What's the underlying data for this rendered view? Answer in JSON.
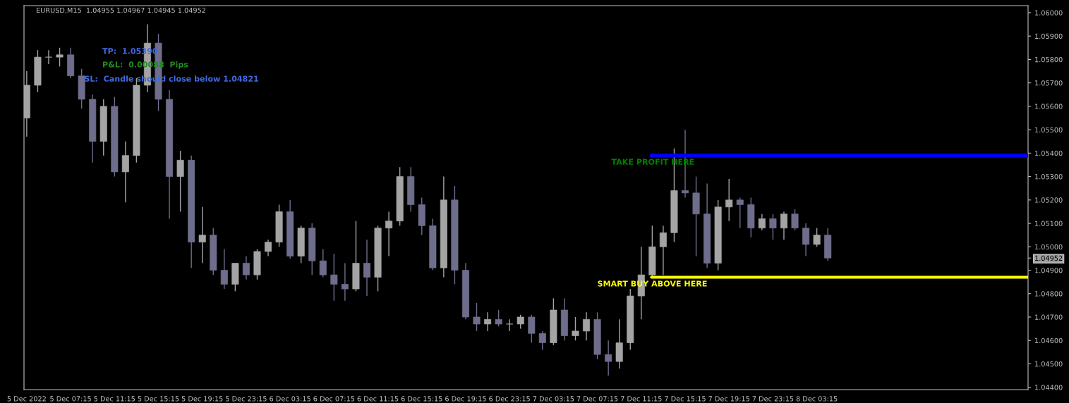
{
  "chart_data": {
    "type": "candlestick",
    "title": "EURUSD,M15  1.04955 1.04967 1.04945 1.04952",
    "x": [
      "2022-12-05T03:15",
      "2022-12-05T04:15",
      "2022-12-05T05:15",
      "2022-12-05T06:15",
      "2022-12-05T07:15",
      "2022-12-05T08:15",
      "2022-12-05T09:15",
      "2022-12-05T10:15",
      "2022-12-05T11:15",
      "2022-12-05T12:15",
      "2022-12-05T13:15",
      "2022-12-05T14:15",
      "2022-12-05T15:15",
      "2022-12-05T16:15",
      "2022-12-05T17:15",
      "2022-12-05T18:15",
      "2022-12-05T19:15",
      "2022-12-05T20:15",
      "2022-12-05T21:15",
      "2022-12-05T22:15",
      "2022-12-05T23:15",
      "2022-12-06T00:15",
      "2022-12-06T01:15",
      "2022-12-06T02:15",
      "2022-12-06T03:15",
      "2022-12-06T04:15",
      "2022-12-06T05:15",
      "2022-12-06T06:15",
      "2022-12-06T07:15",
      "2022-12-06T08:15",
      "2022-12-06T09:15",
      "2022-12-06T10:15",
      "2022-12-06T11:15",
      "2022-12-06T12:15",
      "2022-12-06T13:15",
      "2022-12-06T14:15",
      "2022-12-06T15:15",
      "2022-12-06T16:15",
      "2022-12-06T17:15",
      "2022-12-06T18:15",
      "2022-12-06T19:15",
      "2022-12-06T20:15",
      "2022-12-06T21:15",
      "2022-12-06T22:15",
      "2022-12-06T23:15",
      "2022-12-07T00:15",
      "2022-12-07T01:15",
      "2022-12-07T02:15",
      "2022-12-07T03:15",
      "2022-12-07T04:15",
      "2022-12-07T05:15",
      "2022-12-07T06:15",
      "2022-12-07T07:15",
      "2022-12-07T08:15",
      "2022-12-07T09:15",
      "2022-12-07T10:15",
      "2022-12-07T11:15",
      "2022-12-07T12:15",
      "2022-12-07T13:15",
      "2022-12-07T14:15",
      "2022-12-07T15:15",
      "2022-12-07T16:15",
      "2022-12-07T17:15",
      "2022-12-07T18:15",
      "2022-12-07T19:15",
      "2022-12-07T20:15",
      "2022-12-07T21:15",
      "2022-12-07T22:15",
      "2022-12-07T23:15",
      "2022-12-08T00:15",
      "2022-12-08T01:15",
      "2022-12-08T02:15",
      "2022-12-08T03:15",
      "2022-12-08T04:15"
    ],
    "ohlc": [
      [
        1.0555,
        1.0575,
        1.0547,
        1.0569
      ],
      [
        1.0569,
        1.0584,
        1.0566,
        1.0581
      ],
      [
        1.0581,
        1.0584,
        1.0578,
        1.0581
      ],
      [
        1.0581,
        1.0585,
        1.0577,
        1.0582
      ],
      [
        1.0582,
        1.0585,
        1.0572,
        1.0573
      ],
      [
        1.0573,
        1.0576,
        1.0559,
        1.0563
      ],
      [
        1.0563,
        1.0565,
        1.0536,
        1.0545
      ],
      [
        1.0545,
        1.0563,
        1.0539,
        1.056
      ],
      [
        1.056,
        1.0564,
        1.053,
        1.0532
      ],
      [
        1.0532,
        1.0545,
        1.0519,
        1.0539
      ],
      [
        1.0539,
        1.0572,
        1.0536,
        1.0569
      ],
      [
        1.0569,
        1.0595,
        1.0566,
        1.0587
      ],
      [
        1.0587,
        1.0591,
        1.0558,
        1.0563
      ],
      [
        1.0563,
        1.0567,
        1.0512,
        1.053
      ],
      [
        1.053,
        1.0541,
        1.0515,
        1.0537
      ],
      [
        1.0537,
        1.0539,
        1.0491,
        1.0502
      ],
      [
        1.0502,
        1.0517,
        1.0493,
        1.0505
      ],
      [
        1.0505,
        1.0508,
        1.0488,
        1.049
      ],
      [
        1.049,
        1.0499,
        1.0482,
        1.0484
      ],
      [
        1.0484,
        1.0493,
        1.0481,
        1.0493
      ],
      [
        1.0493,
        1.0496,
        1.0486,
        1.0488
      ],
      [
        1.0488,
        1.0499,
        1.0486,
        1.0498
      ],
      [
        1.0498,
        1.0503,
        1.0496,
        1.0502
      ],
      [
        1.0502,
        1.0518,
        1.05,
        1.0515
      ],
      [
        1.0515,
        1.052,
        1.0495,
        1.0496
      ],
      [
        1.0496,
        1.0509,
        1.0493,
        1.0508
      ],
      [
        1.0508,
        1.051,
        1.0488,
        1.0494
      ],
      [
        1.0494,
        1.0499,
        1.0487,
        1.0488
      ],
      [
        1.0488,
        1.0497,
        1.0477,
        1.0484
      ],
      [
        1.0484,
        1.0493,
        1.0477,
        1.0482
      ],
      [
        1.0482,
        1.0511,
        1.0481,
        1.0493
      ],
      [
        1.0493,
        1.0503,
        1.0479,
        1.0487
      ],
      [
        1.0487,
        1.0509,
        1.0481,
        1.0508
      ],
      [
        1.0508,
        1.0515,
        1.0496,
        1.0511
      ],
      [
        1.0511,
        1.0534,
        1.0509,
        1.053
      ],
      [
        1.053,
        1.0534,
        1.0515,
        1.0518
      ],
      [
        1.0518,
        1.0521,
        1.0505,
        1.0509
      ],
      [
        1.0509,
        1.0512,
        1.049,
        1.0491
      ],
      [
        1.0491,
        1.053,
        1.0487,
        1.052
      ],
      [
        1.052,
        1.0526,
        1.0484,
        1.049
      ],
      [
        1.049,
        1.0493,
        1.0469,
        1.047
      ],
      [
        1.047,
        1.0476,
        1.0464,
        1.0467
      ],
      [
        1.0467,
        1.0472,
        1.0464,
        1.0469
      ],
      [
        1.0469,
        1.0473,
        1.0466,
        1.0467
      ],
      [
        1.0467,
        1.0469,
        1.0464,
        1.0467
      ],
      [
        1.0467,
        1.0471,
        1.0465,
        1.047
      ],
      [
        1.047,
        1.0471,
        1.0459,
        1.0463
      ],
      [
        1.0463,
        1.0464,
        1.0456,
        1.0459
      ],
      [
        1.0459,
        1.0478,
        1.0458,
        1.0473
      ],
      [
        1.0473,
        1.0478,
        1.046,
        1.0462
      ],
      [
        1.0462,
        1.047,
        1.046,
        1.0464
      ],
      [
        1.0464,
        1.0472,
        1.046,
        1.0469
      ],
      [
        1.0469,
        1.0472,
        1.0452,
        1.0454
      ],
      [
        1.0454,
        1.046,
        1.0445,
        1.0451
      ],
      [
        1.0451,
        1.0469,
        1.0448,
        1.0459
      ],
      [
        1.0459,
        1.0482,
        1.0456,
        1.0479
      ],
      [
        1.0479,
        1.05,
        1.0469,
        1.0488
      ],
      [
        1.0488,
        1.0509,
        1.0487,
        1.05
      ],
      [
        1.05,
        1.0509,
        1.0488,
        1.0506
      ],
      [
        1.0506,
        1.0542,
        1.0502,
        1.0524
      ],
      [
        1.0524,
        1.055,
        1.0521,
        1.0523
      ],
      [
        1.0523,
        1.053,
        1.0496,
        1.0514
      ],
      [
        1.0514,
        1.0527,
        1.0491,
        1.0493
      ],
      [
        1.0493,
        1.052,
        1.049,
        1.0517
      ],
      [
        1.0517,
        1.0529,
        1.0511,
        1.052
      ],
      [
        1.052,
        1.0521,
        1.0508,
        1.0518
      ],
      [
        1.0518,
        1.0521,
        1.0504,
        1.0508
      ],
      [
        1.0508,
        1.0514,
        1.0507,
        1.0512
      ],
      [
        1.0512,
        1.0514,
        1.0503,
        1.0508
      ],
      [
        1.0508,
        1.0515,
        1.0503,
        1.0514
      ],
      [
        1.0514,
        1.0516,
        1.0507,
        1.0508
      ],
      [
        1.0508,
        1.051,
        1.0496,
        1.0501
      ],
      [
        1.0501,
        1.0508,
        1.05,
        1.0505
      ],
      [
        1.0505,
        1.0508,
        1.0494,
        1.04952
      ]
    ],
    "xlim": [
      "2022-12-05T03:00",
      "2022-12-08T22:30"
    ],
    "xticks": [
      {
        "value": "2022-12-05T03:15",
        "label": "5 Dec 2022"
      },
      {
        "value": "2022-12-05T07:15",
        "label": "5 Dec 07:15"
      },
      {
        "value": "2022-12-05T11:15",
        "label": "5 Dec 11:15"
      },
      {
        "value": "2022-12-05T15:15",
        "label": "5 Dec 15:15"
      },
      {
        "value": "2022-12-05T19:15",
        "label": "5 Dec 19:15"
      },
      {
        "value": "2022-12-05T23:15",
        "label": "5 Dec 23:15"
      },
      {
        "value": "2022-12-06T03:15",
        "label": "6 Dec 03:15"
      },
      {
        "value": "2022-12-06T07:15",
        "label": "6 Dec 07:15"
      },
      {
        "value": "2022-12-06T11:15",
        "label": "6 Dec 11:15"
      },
      {
        "value": "2022-12-06T15:15",
        "label": "6 Dec 15:15"
      },
      {
        "value": "2022-12-06T19:15",
        "label": "6 Dec 19:15"
      },
      {
        "value": "2022-12-06T23:15",
        "label": "6 Dec 23:15"
      },
      {
        "value": "2022-12-07T03:15",
        "label": "7 Dec 03:15"
      },
      {
        "value": "2022-12-07T07:15",
        "label": "7 Dec 07:15"
      },
      {
        "value": "2022-12-07T11:15",
        "label": "7 Dec 11:15"
      },
      {
        "value": "2022-12-07T15:15",
        "label": "7 Dec 15:15"
      },
      {
        "value": "2022-12-07T19:15",
        "label": "7 Dec 19:15"
      },
      {
        "value": "2022-12-07T23:15",
        "label": "7 Dec 23:15"
      },
      {
        "value": "2022-12-08T03:15",
        "label": "8 Dec 03:15"
      }
    ],
    "ylim": [
      1.0439,
      1.0603
    ],
    "yticks": [
      {
        "value": 1.044,
        "label": "1.04400"
      },
      {
        "value": 1.045,
        "label": "1.04500"
      },
      {
        "value": 1.046,
        "label": "1.04600"
      },
      {
        "value": 1.047,
        "label": "1.04700"
      },
      {
        "value": 1.048,
        "label": "1.04800"
      },
      {
        "value": 1.049,
        "label": "1.04900"
      },
      {
        "value": 1.04952,
        "label": "1.04952"
      },
      {
        "value": 1.05,
        "label": "1.05000"
      },
      {
        "value": 1.051,
        "label": "1.05100"
      },
      {
        "value": 1.052,
        "label": "1.05200"
      },
      {
        "value": 1.053,
        "label": "1.05300"
      },
      {
        "value": 1.054,
        "label": "1.05400"
      },
      {
        "value": 1.055,
        "label": "1.05500"
      },
      {
        "value": 1.056,
        "label": "1.05600"
      },
      {
        "value": 1.057,
        "label": "1.05700"
      },
      {
        "value": 1.058,
        "label": "1.05800"
      },
      {
        "value": 1.059,
        "label": "1.05900"
      },
      {
        "value": 1.06,
        "label": "1.06000"
      }
    ],
    "ref_lines": [
      {
        "axis": "y",
        "value": 1.0539,
        "label": "TAKE PROFIT HERE",
        "color": "#0000ff"
      },
      {
        "axis": "y",
        "value": 1.0487,
        "label": "SMART BUY ABOVE HERE",
        "color": "#ffff00"
      }
    ],
    "annotations": [
      "TP:  1.05390",
      "P&L:  0.00088  Pips",
      "SL:  Candle should close below 1.04821"
    ],
    "grid": false
  }
}
